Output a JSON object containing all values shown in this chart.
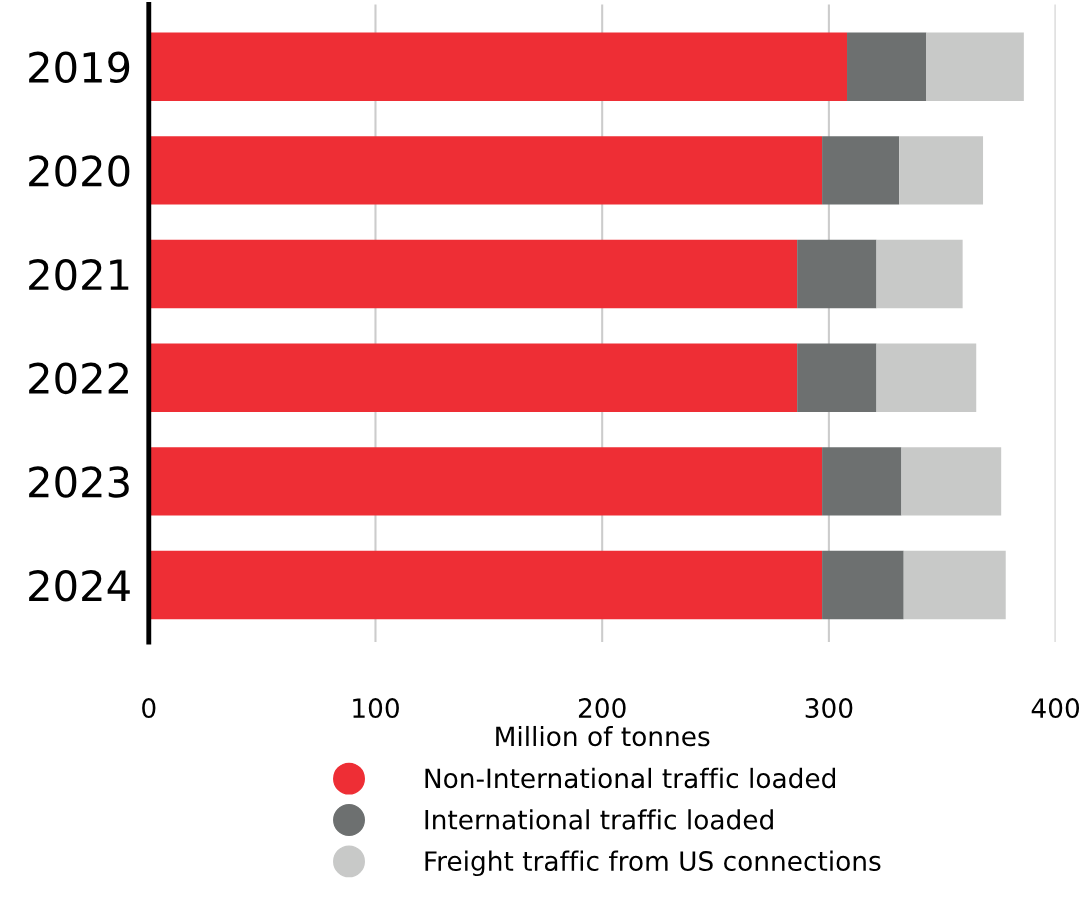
{
  "chart_data": {
    "type": "bar",
    "orientation": "horizontal",
    "stacked": true,
    "xlabel": "Million of tonnes",
    "categories": [
      "2019",
      "2020",
      "2021",
      "2022",
      "2023",
      "2024"
    ],
    "series": [
      {
        "name": "Non-International traffic loaded",
        "color": "#ee2e35",
        "values": [
          308,
          297,
          286,
          286,
          297,
          297
        ]
      },
      {
        "name": "International traffic loaded",
        "color": "#6d7070",
        "values": [
          35,
          34,
          35,
          35,
          35,
          36
        ]
      },
      {
        "name": "Freight traffic from US connections",
        "color": "#c8c9c8",
        "values": [
          43,
          37,
          38,
          44,
          44,
          45
        ]
      }
    ],
    "xlim": [
      0,
      400
    ],
    "xticks": [
      0,
      100,
      200,
      300,
      400
    ],
    "grid": "x",
    "legend": "bottom",
    "marker": "circle"
  }
}
